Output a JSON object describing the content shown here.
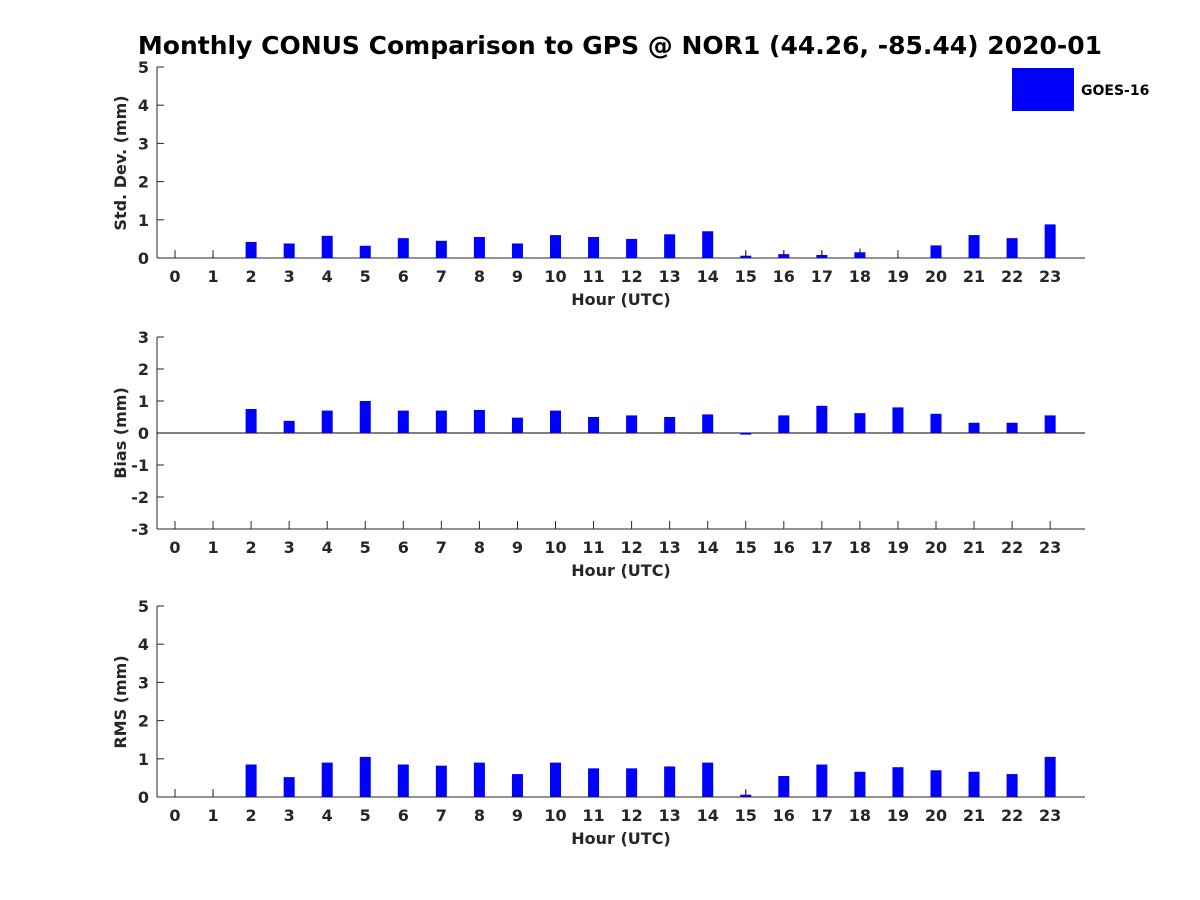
{
  "chart_data": {
    "title": "Monthly CONUS Comparison to GPS @ NOR1 (44.26, -85.44) 2020-01",
    "legend": {
      "label": "GOES-16",
      "color": "#0000ff",
      "placement": "top-right"
    },
    "bar_color": "#0000ff",
    "hours": [
      "0",
      "1",
      "2",
      "3",
      "4",
      "5",
      "6",
      "7",
      "8",
      "9",
      "10",
      "11",
      "12",
      "13",
      "14",
      "15",
      "16",
      "17",
      "18",
      "19",
      "20",
      "21",
      "22",
      "23"
    ],
    "panels": [
      {
        "type": "bar",
        "ylabel": "Std. Dev. (mm)",
        "xlabel": "Hour (UTC)",
        "ylim": [
          0,
          5
        ],
        "yticks": [
          "0",
          "1",
          "2",
          "3",
          "4",
          "5"
        ],
        "values": [
          0,
          0,
          0.42,
          0.38,
          0.58,
          0.32,
          0.52,
          0.45,
          0.55,
          0.38,
          0.6,
          0.55,
          0.5,
          0.62,
          0.7,
          0.06,
          0.1,
          0.08,
          0.15,
          0,
          0.33,
          0.6,
          0.52,
          0.88
        ],
        "errors": [
          0.1,
          0.1,
          0,
          0,
          0,
          0,
          0,
          0,
          0,
          0,
          0,
          0,
          0,
          0,
          0,
          0.1,
          0.1,
          0.1,
          0.1,
          0.1,
          0,
          0,
          0,
          0
        ]
      },
      {
        "type": "bar",
        "ylabel": "Bias (mm)",
        "xlabel": "Hour (UTC)",
        "ylim": [
          -3,
          3
        ],
        "yticks": [
          "-3",
          "-2",
          "-1",
          "0",
          "1",
          "2",
          "3"
        ],
        "values": [
          0,
          0,
          0.75,
          0.38,
          0.7,
          1.0,
          0.7,
          0.7,
          0.72,
          0.48,
          0.7,
          0.5,
          0.55,
          0.5,
          0.58,
          -0.05,
          0.55,
          0.85,
          0.62,
          0.8,
          0.6,
          0.32,
          0.32,
          0.55
        ],
        "errors": [
          0,
          0,
          0,
          0,
          0,
          0,
          0,
          0,
          0,
          0,
          0,
          0,
          0,
          0,
          0,
          0,
          0,
          0,
          0,
          0,
          0,
          0,
          0,
          0
        ]
      },
      {
        "type": "bar",
        "ylabel": "RMS (mm)",
        "xlabel": "Hour (UTC)",
        "ylim": [
          0,
          5
        ],
        "yticks": [
          "0",
          "1",
          "2",
          "3",
          "4",
          "5"
        ],
        "values": [
          0,
          0,
          0.85,
          0.52,
          0.9,
          1.05,
          0.85,
          0.82,
          0.9,
          0.6,
          0.9,
          0.75,
          0.75,
          0.8,
          0.9,
          0.06,
          0.55,
          0.85,
          0.66,
          0.78,
          0.7,
          0.66,
          0.6,
          1.05
        ],
        "errors": [
          0.1,
          0.1,
          0,
          0,
          0,
          0,
          0,
          0,
          0,
          0,
          0,
          0,
          0,
          0,
          0,
          0.1,
          0,
          0,
          0,
          0,
          0,
          0,
          0,
          0
        ]
      }
    ]
  }
}
